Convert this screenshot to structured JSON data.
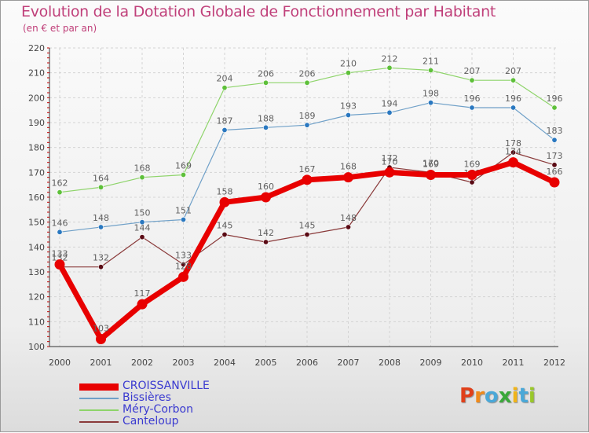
{
  "header": {
    "title": "Evolution de la Dotation Globale de Fonctionnement par Habitant",
    "subtitle": "(en € et par an)"
  },
  "logo": {
    "letters": [
      "P",
      "r",
      "o",
      "x",
      "i",
      "t",
      "i"
    ],
    "colors": [
      "#e0401a",
      "#f08a1a",
      "#4aa8d8",
      "#3aa83a",
      "#f0b41a",
      "#4aa8d8",
      "#9ac82a"
    ]
  },
  "chart_data": {
    "type": "line",
    "title": "Evolution de la Dotation Globale de Fonctionnement par Habitant",
    "subtitle": "(en € et par an)",
    "xlabel": "",
    "ylabel": "",
    "x": [
      "2000",
      "2001",
      "2002",
      "2003",
      "2004",
      "2005",
      "2006",
      "2007",
      "2008",
      "2009",
      "2010",
      "2011",
      "2012"
    ],
    "ylim": [
      100,
      220
    ],
    "yticks": [
      "100",
      "110",
      "120",
      "130",
      "140",
      "150",
      "160",
      "170",
      "180",
      "190",
      "200",
      "210",
      "220"
    ],
    "grid": true,
    "legend_position": "bottom-left",
    "series": [
      {
        "name": "CROISSANVILLE",
        "color": "#e80000",
        "marker_color": "#e80000",
        "label_color": "#606060",
        "values": [
          133,
          103,
          117,
          128,
          158,
          160,
          167,
          168,
          170,
          169,
          169,
          174,
          166
        ],
        "labels": [
          "133",
          "103",
          "117",
          "128",
          "158",
          "160",
          "167",
          "168",
          "170",
          "169",
          "169",
          "174",
          "166"
        ]
      },
      {
        "name": "Bissières",
        "color": "#6fa0c8",
        "marker_color": "#2a78c0",
        "label_color": "#606060",
        "values": [
          146,
          148,
          150,
          151,
          187,
          188,
          189,
          193,
          194,
          198,
          196,
          196,
          183
        ],
        "labels": [
          "146",
          "148",
          "150",
          "151",
          "187",
          "188",
          "189",
          "193",
          "194",
          "198",
          "196",
          "196",
          "183"
        ]
      },
      {
        "name": "Méry-Corbon",
        "color": "#8ed46a",
        "marker_color": "#5ec03a",
        "label_color": "#606060",
        "values": [
          162,
          164,
          168,
          169,
          204,
          206,
          206,
          210,
          212,
          211,
          207,
          207,
          196
        ],
        "labels": [
          "162",
          "164",
          "168",
          "169",
          "204",
          "206",
          "206",
          "210",
          "212",
          "211",
          "207",
          "207",
          "196"
        ]
      },
      {
        "name": "Canteloup",
        "color": "#8a3a3a",
        "marker_color": "#5a0a14",
        "label_color": "#606060",
        "values": [
          132,
          132,
          144,
          133,
          145,
          142,
          145,
          148,
          172,
          170,
          166,
          178,
          173
        ],
        "labels": [
          "132",
          "132",
          "144",
          "133",
          "145",
          "142",
          "145",
          "148",
          "172",
          "170",
          "166",
          "178",
          "173"
        ]
      }
    ]
  }
}
